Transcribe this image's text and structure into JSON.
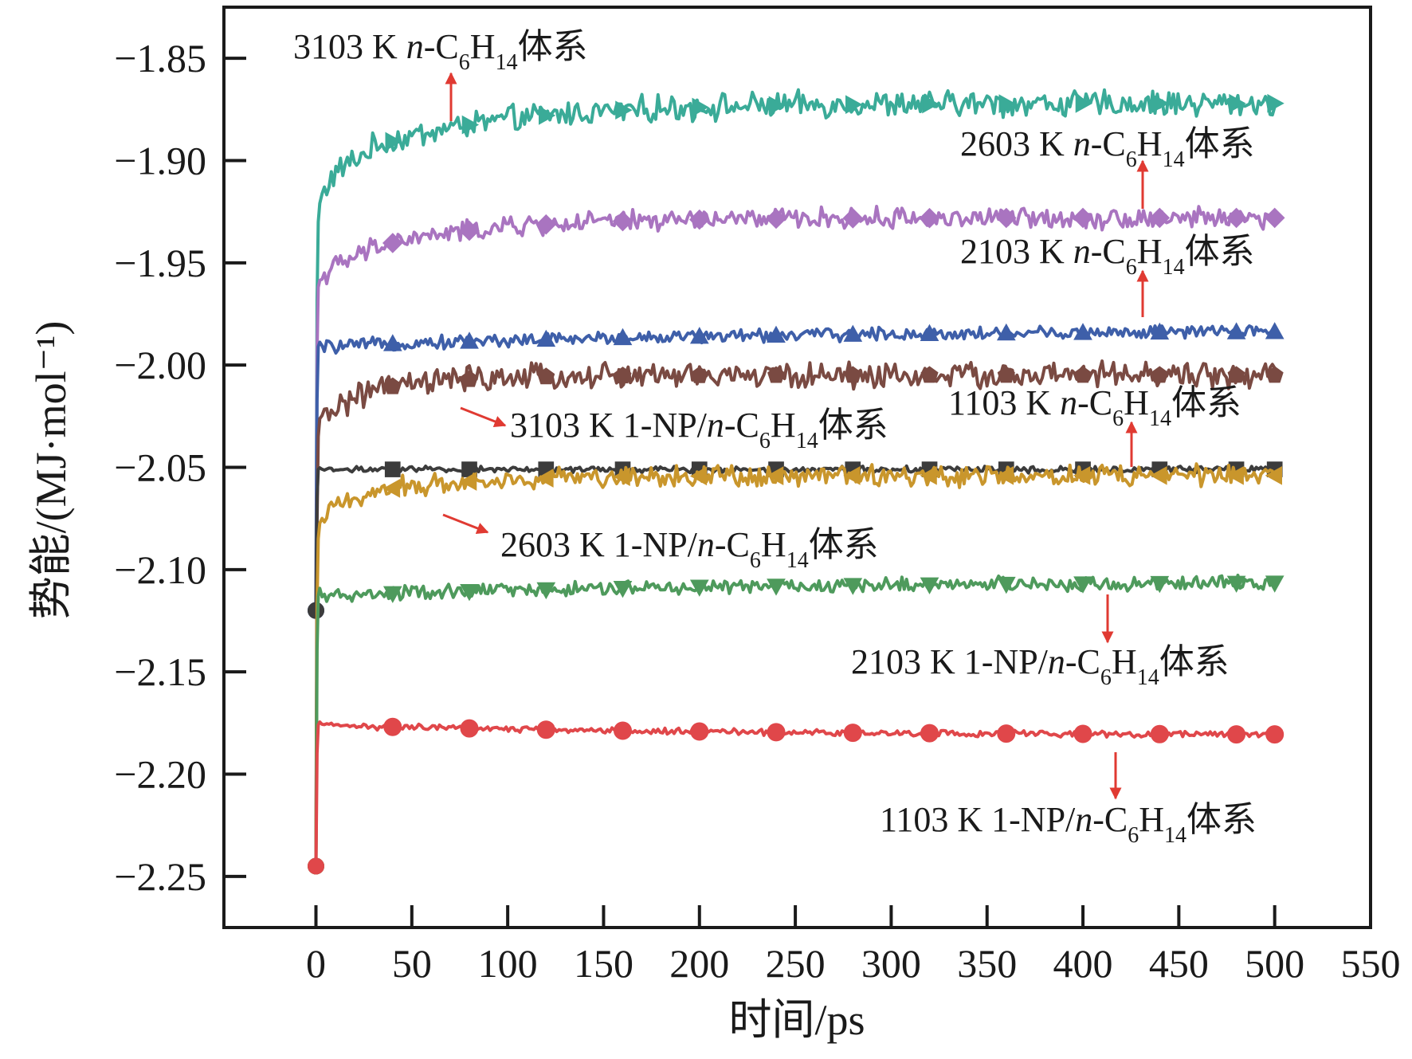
{
  "chart_data": {
    "type": "line",
    "xlabel": "时间/ps",
    "ylabel": "势能/(MJ·mol⁻¹)",
    "xlim": [
      -48,
      550
    ],
    "ylim": [
      -2.275,
      -1.825
    ],
    "xticks": [
      0,
      50,
      100,
      150,
      200,
      250,
      300,
      350,
      400,
      450,
      500,
      550
    ],
    "xtick_labels": [
      "0",
      "50",
      "100",
      "150",
      "200",
      "250",
      "300",
      "350",
      "400",
      "450",
      "500",
      "550"
    ],
    "yticks": [
      -1.85,
      -1.9,
      -1.95,
      -2.0,
      -2.05,
      -2.1,
      -2.15,
      -2.2,
      -2.25
    ],
    "ytick_labels": [
      "−1.85",
      "−1.90",
      "−1.95",
      "−2.00",
      "−2.05",
      "−2.10",
      "−2.15",
      "−2.20",
      "−2.25"
    ],
    "grid": false,
    "marker_x": [
      40,
      80,
      120,
      160,
      200,
      240,
      280,
      320,
      360,
      400,
      440,
      480,
      500
    ],
    "series": [
      {
        "name": "3103 K n-C6H14体系",
        "label": {
          "pre": "3103 K ",
          "ital": "n",
          "post": "-C",
          "sub1": "6",
          "mid": "H",
          "sub2": "14",
          "tail": "体系"
        },
        "color": "#3aab98",
        "marker": "triangle-right",
        "start": -2.12,
        "jump": -1.93,
        "early": -1.905,
        "final": -1.872,
        "tau": 70,
        "noise": 0.005,
        "markers": true
      },
      {
        "name": "2603 K n-C6H14体系",
        "label": {
          "pre": "2603 K ",
          "ital": "n",
          "post": "-C",
          "sub1": "6",
          "mid": "H",
          "sub2": "14",
          "tail": "体系"
        },
        "color": "#a974c0",
        "marker": "diamond",
        "start": -2.12,
        "jump": -1.962,
        "early": -1.952,
        "final": -1.928,
        "tau": 60,
        "noise": 0.004,
        "markers": true
      },
      {
        "name": "2103 K n-C6H14体系",
        "label": {
          "pre": "2103 K ",
          "ital": "n",
          "post": "-C",
          "sub1": "6",
          "mid": "H",
          "sub2": "14",
          "tail": "体系"
        },
        "color": "#3e5fa9",
        "marker": "triangle-up",
        "start": -2.12,
        "jump": -1.991,
        "early": -1.991,
        "final": -1.983,
        "tau": 200,
        "noise": 0.0025,
        "markers": true
      },
      {
        "name": "3103 K 1-NP/n-C6H14体系",
        "label": {
          "pre": "3103 K 1-NP/",
          "ital": "n",
          "post": "-C",
          "sub1": "6",
          "mid": "H",
          "sub2": "14",
          "tail": "体系"
        },
        "color": "#7a4a42",
        "marker": "pentagon",
        "start": -2.245,
        "jump": -2.035,
        "early": -2.02,
        "final": -2.005,
        "tau": 40,
        "noise": 0.005,
        "markers": true
      },
      {
        "name": "1103 K n-C6H14体系",
        "label": {
          "pre": "1103 K ",
          "ital": "n",
          "post": "-C",
          "sub1": "6",
          "mid": "H",
          "sub2": "14",
          "tail": "体系"
        },
        "color": "#3c3c3c",
        "marker": "square",
        "start": -2.12,
        "jump": -2.051,
        "early": -2.051,
        "final": -2.051,
        "tau": 100,
        "noise": 0.0012,
        "markers": true
      },
      {
        "name": "2603 K 1-NP/n-C6H14体系",
        "label": {
          "pre": "2603 K 1-NP/",
          "ital": "n",
          "post": "-C",
          "sub1": "6",
          "mid": "H",
          "sub2": "14",
          "tail": "体系"
        },
        "color": "#c9962c",
        "marker": "triangle-left",
        "start": -2.245,
        "jump": -2.085,
        "early": -2.068,
        "final": -2.054,
        "tau": 50,
        "noise": 0.004,
        "markers": true
      },
      {
        "name": "2103 K 1-NP/n-C6H14体系",
        "label": {
          "pre": "2103 K 1-NP/",
          "ital": "n",
          "post": "-C",
          "sub1": "6",
          "mid": "H",
          "sub2": "14",
          "tail": "体系"
        },
        "color": "#4e9a5c",
        "marker": "triangle-down",
        "start": -2.245,
        "jump": -2.113,
        "early": -2.113,
        "final": -2.106,
        "tau": 200,
        "noise": 0.0028,
        "markers": true
      },
      {
        "name": "1103 K 1-NP/n-C6H14体系",
        "label": {
          "pre": "1103 K 1-NP/",
          "ital": "n",
          "post": "-C",
          "sub1": "6",
          "mid": "H",
          "sub2": "14",
          "tail": "体系"
        },
        "color": "#e0474a",
        "marker": "circle",
        "start": -2.245,
        "jump": -2.176,
        "early": -2.176,
        "final": -2.181,
        "tau": 200,
        "noise": 0.0012,
        "markers": true
      }
    ]
  }
}
